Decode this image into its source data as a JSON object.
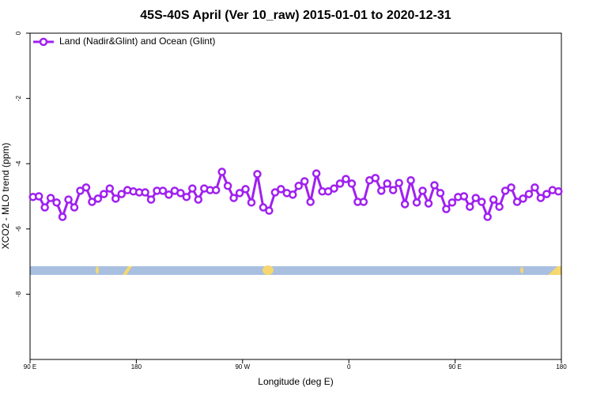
{
  "chart_data": {
    "type": "line",
    "title": "45S-40S April (Ver 10_raw)   2015-01-01 to 2020-12-31",
    "x_label": "Longitude (deg E)",
    "y_label": "XCO2 - MLO trend (ppm)",
    "xlim": [
      90,
      540
    ],
    "ylim": [
      -10,
      0
    ],
    "xticks": [
      {
        "value": 90,
        "label": "90 E"
      },
      180,
      {
        "value": 270,
        "label": "90 W"
      },
      {
        "value": 360,
        "label": "0"
      },
      {
        "value": 450,
        "label": "90 E"
      },
      {
        "value": 540,
        "label": "180"
      }
    ],
    "yticks": [
      0,
      -2,
      -4,
      -6,
      -8
    ],
    "legend": "top-left",
    "x": [
      92.5,
      97.5,
      102.5,
      107.5,
      112.5,
      117.5,
      122.5,
      127.5,
      132.5,
      137.5,
      142.5,
      147.5,
      152.5,
      157.5,
      162.5,
      167.5,
      172.5,
      177.5,
      182.5,
      187.5,
      192.5,
      197.5,
      202.5,
      207.5,
      212.5,
      217.5,
      222.5,
      227.5,
      232.5,
      237.5,
      242.5,
      247.5,
      252.5,
      257.5,
      262.5,
      267.5,
      272.5,
      277.5,
      282.5,
      287.5,
      292.5,
      297.5,
      302.5,
      307.5,
      312.5,
      317.5,
      322.5,
      327.5,
      332.5,
      337.5,
      342.5,
      347.5,
      352.5,
      357.5,
      362.5,
      367.5,
      372.5,
      377.5,
      382.5,
      387.5,
      392.5,
      397.5,
      402.5,
      407.5,
      412.5,
      417.5,
      422.5,
      427.5,
      432.5,
      437.5,
      442.5,
      447.5,
      452.5,
      457.5,
      462.5,
      467.5,
      472.5,
      477.5,
      482.5,
      487.5,
      492.5,
      497.5,
      502.5,
      507.5,
      512.5,
      517.5,
      522.5,
      527.5,
      532.5,
      537.5
    ],
    "series": [
      {
        "name": "Land (Nadir&Glint) and Ocean (Glint)",
        "color": "#a020f0",
        "values": [
          -5.02,
          -5.0,
          -5.34,
          -5.05,
          -5.19,
          -5.63,
          -5.1,
          -5.34,
          -4.83,
          -4.73,
          -5.17,
          -5.07,
          -4.93,
          -4.76,
          -5.07,
          -4.93,
          -4.81,
          -4.85,
          -4.88,
          -4.88,
          -5.1,
          -4.83,
          -4.83,
          -4.95,
          -4.83,
          -4.9,
          -5.02,
          -4.76,
          -5.1,
          -4.76,
          -4.81,
          -4.81,
          -4.25,
          -4.68,
          -5.05,
          -4.9,
          -4.78,
          -5.19,
          -4.32,
          -5.34,
          -5.44,
          -4.88,
          -4.78,
          -4.9,
          -4.95,
          -4.68,
          -4.54,
          -5.17,
          -4.3,
          -4.85,
          -4.85,
          -4.76,
          -4.61,
          -4.47,
          -4.61,
          -5.17,
          -5.17,
          -4.51,
          -4.44,
          -4.83,
          -4.61,
          -4.81,
          -4.59,
          -5.24,
          -4.51,
          -5.19,
          -4.83,
          -5.22,
          -4.66,
          -4.9,
          -5.39,
          -5.19,
          -5.02,
          -5.0,
          -5.32,
          -5.05,
          -5.17,
          -5.63,
          -5.1,
          -5.32,
          -4.83,
          -4.73,
          -5.17,
          -5.07,
          -4.93,
          -4.73,
          -5.05,
          -4.93,
          -4.81,
          -4.85
        ]
      }
    ]
  }
}
